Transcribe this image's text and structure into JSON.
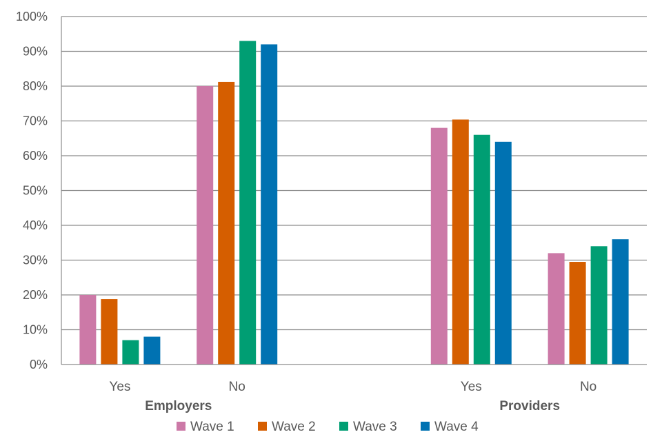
{
  "chart_data": {
    "type": "bar",
    "title": "",
    "xlabel": "",
    "ylabel": "",
    "ylim": [
      0,
      100
    ],
    "yticks": [
      0,
      10,
      20,
      30,
      40,
      50,
      60,
      70,
      80,
      90,
      100
    ],
    "ytick_labels": [
      "0%",
      "10%",
      "20%",
      "30%",
      "40%",
      "50%",
      "60%",
      "70%",
      "80%",
      "90%",
      "100%"
    ],
    "grid": true,
    "legend_position": "bottom",
    "groups": [
      {
        "label": "Employers",
        "categories": [
          "Yes",
          "No"
        ]
      },
      {
        "label": "Providers",
        "categories": [
          "Yes",
          "No"
        ]
      }
    ],
    "categories": [
      "Yes",
      "No",
      "Yes",
      "No"
    ],
    "series": [
      {
        "name": "Wave 1",
        "color": "#cc79a7",
        "values": [
          20,
          80,
          68,
          32
        ]
      },
      {
        "name": "Wave 2",
        "color": "#d55e00",
        "values": [
          18.8,
          81.2,
          70.4,
          29.5
        ]
      },
      {
        "name": "Wave 3",
        "color": "#009e73",
        "values": [
          7,
          93,
          66,
          34
        ]
      },
      {
        "name": "Wave 4",
        "color": "#0072b2",
        "values": [
          8,
          92,
          64,
          36
        ]
      }
    ]
  }
}
